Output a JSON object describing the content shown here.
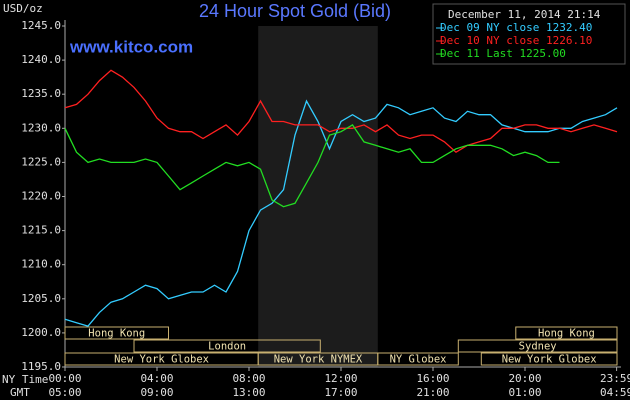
{
  "chart_data": {
    "type": "line",
    "title": "24 Hour Spot Gold (Bid)",
    "site": "www.kitco.com",
    "y_label": "USD/oz",
    "date": "December 11, 2014 21:14",
    "x_label": "NY Time",
    "x2_label": "GMT",
    "x": [
      0,
      0.5,
      1,
      1.5,
      2,
      2.5,
      3,
      3.5,
      4,
      4.5,
      5,
      5.5,
      6,
      6.5,
      7,
      7.5,
      8,
      8.5,
      9,
      9.5,
      10,
      10.5,
      11,
      11.5,
      12,
      12.5,
      13,
      13.5,
      14,
      14.5,
      15,
      15.5,
      16,
      16.5,
      17,
      17.5,
      18,
      18.5,
      19,
      19.5,
      20,
      20.5,
      21,
      21.5,
      22,
      22.5,
      23,
      23.5,
      24
    ],
    "series": [
      {
        "name": "Dec 09 NY close 1232.40",
        "color": "#33ccff",
        "values": [
          1202,
          1201.5,
          1201,
          1203,
          1204.5,
          1205,
          1206,
          1207,
          1206.5,
          1205,
          1205.5,
          1206,
          1206,
          1207,
          1206,
          1209,
          1215,
          1218,
          1219,
          1221,
          1229,
          1234,
          1231,
          1227,
          1231,
          1232,
          1231,
          1231.5,
          1233.5,
          1233,
          1232,
          1232.5,
          1233,
          1231.5,
          1231,
          1232.5,
          1232,
          1232,
          1230.5,
          1230,
          1229.5,
          1229.5,
          1229.5,
          1230,
          1230,
          1231,
          1231.5,
          1232,
          1233
        ]
      },
      {
        "name": "Dec 10 NY close 1226.10",
        "color": "#ff2020",
        "values": [
          1233,
          1233.5,
          1235,
          1237,
          1238.5,
          1237.5,
          1236,
          1234,
          1231.5,
          1230,
          1229.5,
          1229.5,
          1228.5,
          1229.5,
          1230.5,
          1229,
          1231,
          1234,
          1231,
          1231,
          1230.5,
          1230.5,
          1230.5,
          1229.5,
          1230,
          1230,
          1230.5,
          1229.5,
          1230.5,
          1229,
          1228.5,
          1229,
          1229,
          1228,
          1226.5,
          1227.5,
          1228,
          1228.5,
          1230,
          1230,
          1230.5,
          1230.5,
          1230,
          1230,
          1229.5,
          1230,
          1230.5,
          1230,
          1229.5
        ]
      },
      {
        "name": "Dec 11 Last 1225.00",
        "color": "#22dd22",
        "values": [
          1230,
          1226.5,
          1225,
          1225.5,
          1225,
          1225,
          1225,
          1225.5,
          1225,
          1223,
          1221,
          1222,
          1223,
          1224,
          1225,
          1224.5,
          1225,
          1224,
          1219.5,
          1218.5,
          1219,
          1222,
          1225,
          1229,
          1229.5,
          1230.5,
          1228,
          1227.5,
          1227,
          1226.5,
          1227,
          1225,
          1225,
          1226,
          1227,
          1227.5,
          1227.5,
          1227.5,
          1227,
          1226,
          1226.5,
          1226,
          1225,
          1225,
          null,
          null,
          null,
          null,
          null
        ]
      }
    ],
    "xlim": [
      0,
      24
    ],
    "xticks": [
      {
        "value": 0,
        "label": "00:00"
      },
      {
        "value": 4,
        "label": "04:00"
      },
      {
        "value": 8,
        "label": "08:00"
      },
      {
        "value": 12,
        "label": "12:00"
      },
      {
        "value": 16,
        "label": "16:00"
      },
      {
        "value": 20,
        "label": "20:00"
      },
      {
        "value": 23.983,
        "label": "23:59"
      }
    ],
    "x2ticks": [
      "05:00",
      "09:00",
      "13:00",
      "17:00",
      "21:00",
      "01:00",
      "04:59"
    ],
    "ylim": [
      1195,
      1245
    ],
    "yticks": [
      {
        "value": 1195,
        "label": "1195.0"
      },
      {
        "value": 1200,
        "label": "1200.0"
      },
      {
        "value": 1205,
        "label": "1205.0"
      },
      {
        "value": 1210,
        "label": "1210.0"
      },
      {
        "value": 1215,
        "label": "1215.0"
      },
      {
        "value": 1220,
        "label": "1220.0"
      },
      {
        "value": 1225,
        "label": "1225.0"
      },
      {
        "value": 1230,
        "label": "1230.0"
      },
      {
        "value": 1235,
        "label": "1235.0"
      },
      {
        "value": 1240,
        "label": "1240.0"
      },
      {
        "value": 1245,
        "label": "1245.0"
      }
    ],
    "grid": false,
    "highlight": [
      8.4,
      13.6
    ],
    "session_rows": [
      [
        {
          "label": "Hong Kong",
          "start": 0,
          "end": 4.5
        },
        {
          "label": "Hong Kong",
          "start": 19.6,
          "end": 24
        }
      ],
      [
        {
          "label": "London",
          "start": 3,
          "end": 11.1
        },
        {
          "label": "Sydney",
          "start": 17.1,
          "end": 24
        }
      ],
      [
        {
          "label": "New York Globex",
          "start": 0,
          "end": 8.4
        },
        {
          "label": "New York NYMEX",
          "start": 8.4,
          "end": 13.6
        },
        {
          "label": "NY Globex",
          "start": 13.6,
          "end": 17.1
        },
        {
          "label": "New York Globex",
          "start": 18.1,
          "end": 24
        }
      ]
    ]
  }
}
